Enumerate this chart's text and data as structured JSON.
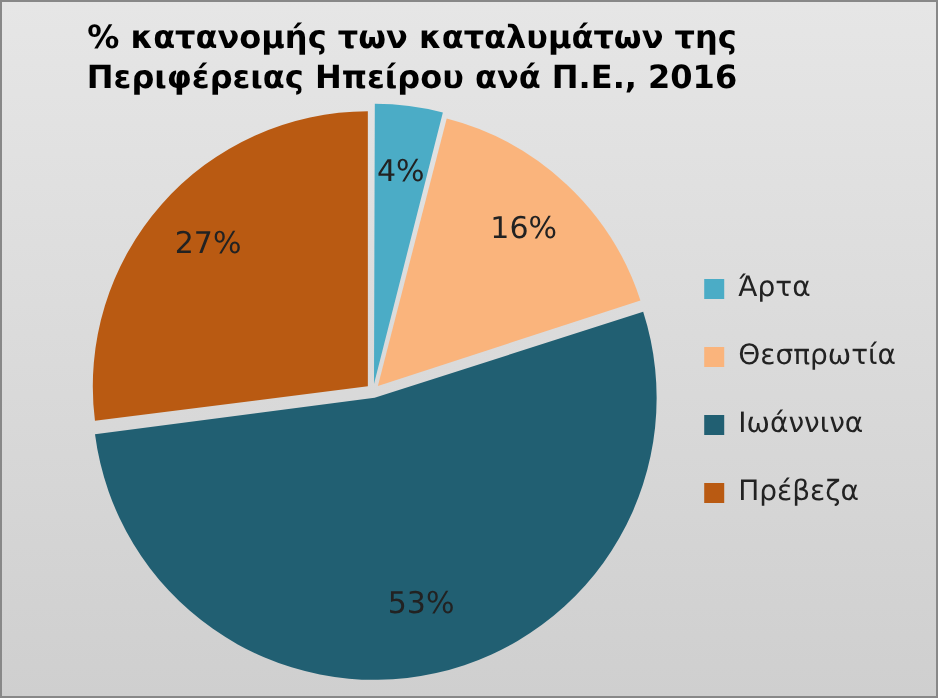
{
  "chart_data": {
    "type": "pie",
    "title": "% κατανομής των καταλυμάτων της Περιφέρειας Ηπείρου ανά Π.Ε., 2016",
    "categories": [
      "Άρτα",
      "Θεσπρωτία",
      "Ιωάννινα",
      "Πρέβεζα"
    ],
    "values": [
      4,
      16,
      53,
      27
    ],
    "colors": [
      "#4bacc6",
      "#fab47c",
      "#215f72",
      "#b95a12"
    ],
    "value_labels": [
      "4%",
      "16%",
      "53%",
      "27%"
    ],
    "legend": "right"
  }
}
